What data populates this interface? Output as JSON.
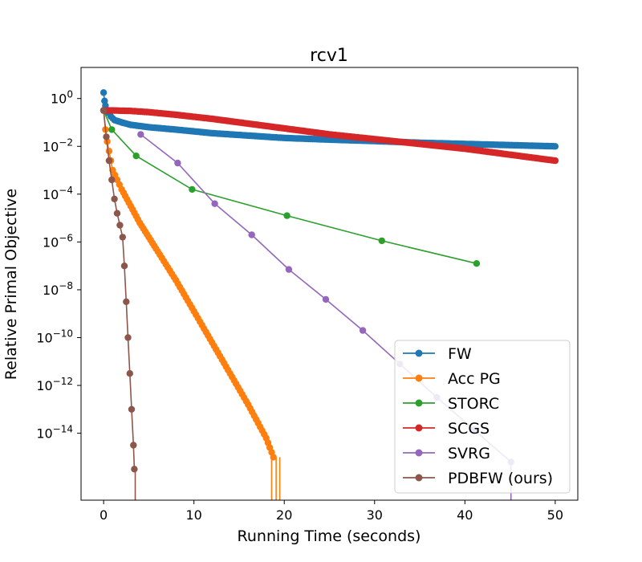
{
  "chart_data": {
    "type": "line",
    "title": "rcv1",
    "xlabel": "Running Time (seconds)",
    "ylabel": "Relative Primal Objective",
    "xlim": [
      -2.5,
      52.5
    ],
    "ylim_log10": [
      -16.8,
      1.3
    ],
    "yscale": "log",
    "x_ticks": [
      0,
      10,
      20,
      30,
      40,
      50
    ],
    "y_ticks": [
      {
        "exp": 0,
        "label": "10",
        "sup": "0"
      },
      {
        "exp": -2,
        "label": "10",
        "sup": "−2"
      },
      {
        "exp": -4,
        "label": "10",
        "sup": "−4"
      },
      {
        "exp": -6,
        "label": "10",
        "sup": "−6"
      },
      {
        "exp": -8,
        "label": "10",
        "sup": "−8"
      },
      {
        "exp": -10,
        "label": "10",
        "sup": "−10"
      },
      {
        "exp": -12,
        "label": "10",
        "sup": "−12"
      },
      {
        "exp": -14,
        "label": "10",
        "sup": "−14"
      }
    ],
    "grid": false,
    "legend_position": "lower-right",
    "series": [
      {
        "name": "FW",
        "color": "#1f77b4",
        "x": [
          0,
          0.1,
          0.2,
          0.3,
          0.5,
          0.8,
          1.2,
          2,
          3,
          5,
          8,
          12,
          16,
          20,
          25,
          30,
          35,
          40,
          45,
          50
        ],
        "y_log10": [
          0.25,
          -0.1,
          -0.3,
          -0.5,
          -0.6,
          -0.75,
          -0.9,
          -1.0,
          -1.1,
          -1.2,
          -1.3,
          -1.45,
          -1.55,
          -1.65,
          -1.72,
          -1.78,
          -1.85,
          -1.9,
          -1.95,
          -2.0
        ],
        "dense": true
      },
      {
        "name": "Acc PG",
        "color": "#ff7f0e",
        "x": [
          0,
          0.2,
          0.4,
          0.6,
          0.8,
          1.0,
          1.5,
          2,
          3,
          4,
          5,
          6,
          8,
          10,
          12,
          14,
          16,
          18,
          18.8
        ],
        "y_log10": [
          -0.5,
          -1.3,
          -1.8,
          -2.2,
          -2.6,
          -3.0,
          -3.4,
          -3.8,
          -4.5,
          -5.2,
          -5.8,
          -6.4,
          -7.6,
          -8.9,
          -10.2,
          -11.5,
          -12.8,
          -14.2,
          -15.0
        ],
        "dense": true,
        "drop_at": [
          18.6,
          19.1,
          19.5
        ]
      },
      {
        "name": "STORC",
        "color": "#2ca02c",
        "x": [
          0,
          0.9,
          3.6,
          9.8,
          20.3,
          30.8,
          41.3
        ],
        "y_log10": [
          -0.5,
          -1.3,
          -2.4,
          -3.8,
          -4.9,
          -5.95,
          -6.9
        ],
        "dense": false
      },
      {
        "name": "SCGS",
        "color": "#d62728",
        "x": [
          0,
          1,
          3,
          5,
          8,
          12,
          16,
          20,
          25,
          30,
          35,
          40,
          45,
          50
        ],
        "y_log10": [
          -0.5,
          -0.5,
          -0.52,
          -0.57,
          -0.68,
          -0.85,
          -1.05,
          -1.25,
          -1.5,
          -1.7,
          -1.9,
          -2.1,
          -2.35,
          -2.6
        ],
        "dense": true
      },
      {
        "name": "SVRG",
        "color": "#9467bd",
        "x": [
          4.1,
          8.2,
          12.3,
          16.4,
          20.5,
          24.6,
          28.7,
          32.8,
          36.9,
          41.0,
          45.1
        ],
        "y_log10": [
          -1.5,
          -2.7,
          -4.4,
          -5.7,
          -7.15,
          -8.4,
          -9.7,
          -11.1,
          -12.5,
          -13.85,
          -15.2
        ],
        "dense": false,
        "drop_at": [
          45.1
        ]
      },
      {
        "name": "PDBFW (ours)",
        "color": "#8c564b",
        "x": [
          0,
          0.3,
          0.6,
          0.9,
          1.2,
          1.5,
          1.8,
          2.1,
          2.3,
          2.5,
          2.7,
          2.9,
          3.1,
          3.3,
          3.4
        ],
        "y_log10": [
          -0.5,
          -1.6,
          -2.6,
          -3.4,
          -4.2,
          -4.8,
          -5.3,
          -5.8,
          -7.0,
          -8.5,
          -10.0,
          -11.5,
          -13.0,
          -14.5,
          -15.5
        ],
        "dense": true,
        "drop_at": [
          3.5
        ]
      }
    ]
  }
}
